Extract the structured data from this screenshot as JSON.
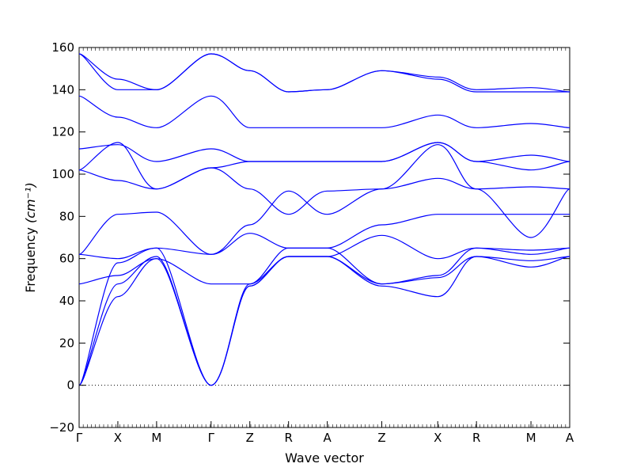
{
  "chart_data": {
    "type": "line",
    "xlabel": "Wave vector",
    "ylabel": "Frequency",
    "ylabel_unit": "(cm⁻¹)",
    "ylim": [
      -20,
      160
    ],
    "yticks": [
      -20,
      0,
      20,
      40,
      60,
      80,
      100,
      120,
      140,
      160
    ],
    "grid": false,
    "line_color": "#0000ff",
    "zero_line_color": "#000000",
    "segment_labels": [
      "Γ",
      "X",
      "M",
      "Γ",
      "Z",
      "R",
      "A",
      "Z",
      "X",
      "R",
      "M",
      "A"
    ],
    "segment_positions": [
      0,
      0.54,
      1.08,
      1.84,
      2.38,
      2.92,
      3.46,
      4.22,
      5.0,
      5.54,
      6.3,
      6.84
    ],
    "xlim": [
      0,
      6.84
    ],
    "bands": [
      {
        "x": [
          0,
          0.54,
          1.08,
          1.84,
          2.38,
          2.92,
          3.46,
          4.22,
          5.0,
          5.54,
          6.3,
          6.84
        ],
        "y": [
          0,
          42,
          60,
          0,
          47,
          61,
          61,
          47,
          42,
          61,
          56,
          61
        ]
      },
      {
        "x": [
          0,
          0.54,
          1.08,
          1.84,
          2.38,
          2.92,
          3.46,
          4.22,
          5.0,
          5.54,
          6.3,
          6.84
        ],
        "y": [
          0,
          48,
          61,
          0,
          47,
          61,
          61,
          48,
          51,
          61,
          59,
          61
        ]
      },
      {
        "x": [
          0,
          0.54,
          1.08,
          1.84,
          2.38,
          2.92,
          3.46,
          4.22,
          5.0,
          5.54,
          6.3,
          6.84
        ],
        "y": [
          0,
          58,
          65,
          0,
          48,
          65,
          65,
          48,
          52,
          65,
          62,
          65
        ]
      },
      {
        "x": [
          0,
          0.54,
          1.08,
          1.84,
          2.38,
          2.92,
          3.46,
          4.22,
          5.0,
          5.54,
          6.3,
          6.84
        ],
        "y": [
          48,
          52,
          60,
          48,
          48,
          61,
          61,
          71,
          60,
          65,
          64,
          65
        ]
      },
      {
        "x": [
          0,
          0.54,
          1.08,
          1.84,
          2.38,
          2.92,
          3.46,
          4.22,
          5.0,
          5.54,
          6.3,
          6.84
        ],
        "y": [
          62,
          60,
          65,
          62,
          72,
          65,
          65,
          76,
          81,
          81,
          81,
          81
        ]
      },
      {
        "x": [
          0,
          0.54,
          1.08,
          1.84,
          2.38,
          2.92,
          3.46,
          4.22,
          5.0,
          5.54,
          6.3,
          6.84
        ],
        "y": [
          62,
          81,
          82,
          62,
          76,
          92,
          81,
          93,
          98,
          93,
          70,
          93
        ]
      },
      {
        "x": [
          0,
          0.54,
          1.08,
          1.84,
          2.38,
          2.92,
          3.46,
          4.22,
          5.0,
          5.54,
          6.3,
          6.84
        ],
        "y": [
          102,
          97,
          93,
          103,
          93,
          81,
          92,
          93,
          114,
          93,
          94,
          93
        ]
      },
      {
        "x": [
          0,
          0.54,
          1.08,
          1.84,
          2.38,
          2.92,
          3.46,
          4.22,
          5.0,
          5.54,
          6.3,
          6.84
        ],
        "y": [
          102,
          115,
          93,
          103,
          106,
          106,
          106,
          106,
          115,
          106,
          109,
          106
        ]
      },
      {
        "x": [
          0,
          0.54,
          1.08,
          1.84,
          2.38,
          2.92,
          3.46,
          4.22,
          5.0,
          5.54,
          6.3,
          6.84
        ],
        "y": [
          112,
          114,
          106,
          112,
          106,
          106,
          106,
          106,
          115,
          106,
          102,
          106
        ]
      },
      {
        "x": [
          0,
          0.54,
          1.08,
          1.84,
          2.38,
          2.92,
          3.46,
          4.22,
          5.0,
          5.54,
          6.3,
          6.84
        ],
        "y": [
          137,
          127,
          122,
          137,
          122,
          122,
          122,
          122,
          128,
          122,
          124,
          122
        ]
      },
      {
        "x": [
          0,
          0.54,
          1.08,
          1.84,
          2.38,
          2.92,
          3.46,
          4.22,
          5.0,
          5.54,
          6.3,
          6.84
        ],
        "y": [
          157,
          140,
          140,
          157,
          149,
          139,
          140,
          149,
          145,
          139,
          139,
          139
        ]
      },
      {
        "x": [
          0,
          0.54,
          1.08,
          1.84,
          2.38,
          2.92,
          3.46,
          4.22,
          5.0,
          5.54,
          6.3,
          6.84
        ],
        "y": [
          157,
          145,
          140,
          157,
          149,
          139,
          140,
          149,
          146,
          140,
          141,
          139
        ]
      }
    ]
  }
}
